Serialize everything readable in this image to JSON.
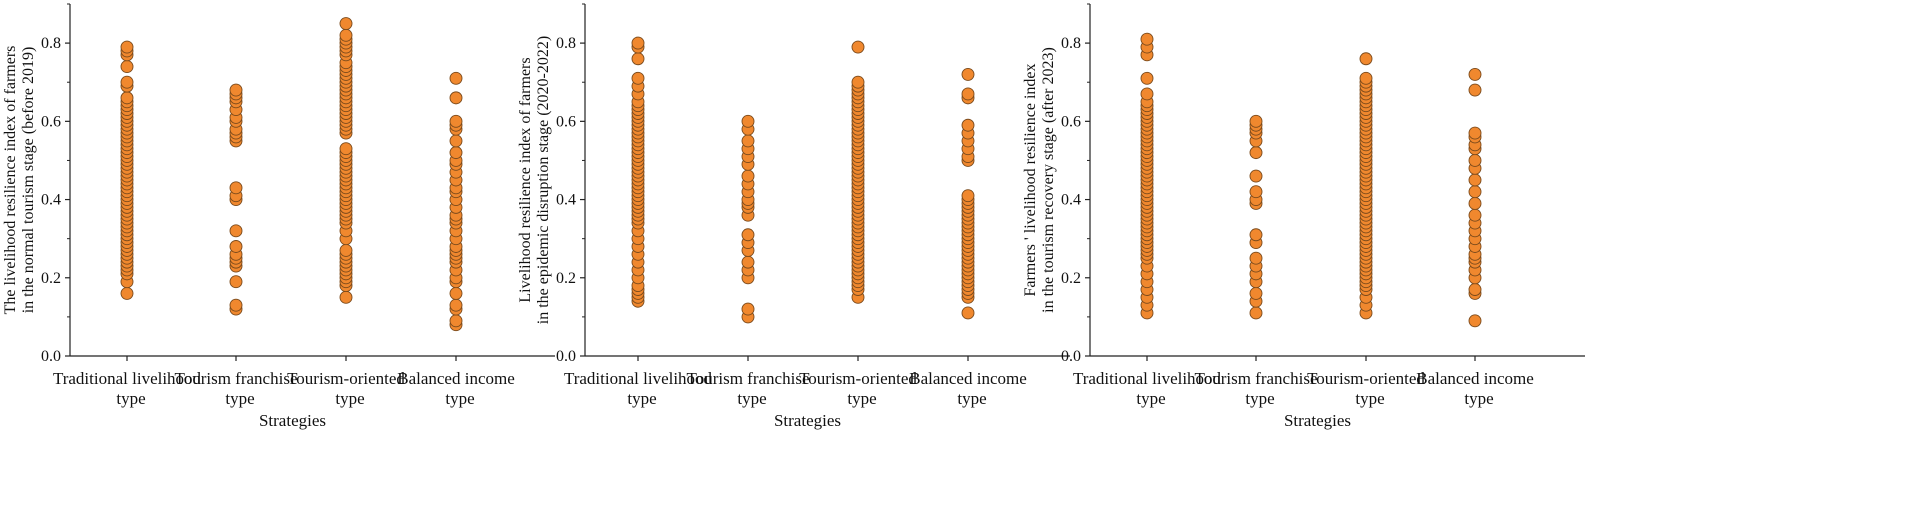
{
  "marker_fill": "#F0882E",
  "marker_stroke": "#7A4A1C",
  "chart_data": [
    {
      "type": "scatter",
      "xlabel": "Strategies",
      "ylabel": [
        "The livelihood resilience index of farmers",
        "in the normal tourism stage (before 2019)"
      ],
      "ylim": [
        0,
        0.9
      ],
      "yticks": [
        "0.0",
        "0.2",
        "0.4",
        "0.6",
        "0.8"
      ],
      "categories": [
        [
          "Traditional livelihood",
          "type"
        ],
        [
          "Tourism franchise",
          "type"
        ],
        [
          "Tourism-oriented",
          "type"
        ],
        [
          "Balanced income",
          "type"
        ]
      ],
      "grid": false,
      "series": [
        {
          "values": [
            0.16,
            0.19,
            0.21,
            0.22,
            0.23,
            0.24,
            0.25,
            0.26,
            0.27,
            0.28,
            0.29,
            0.3,
            0.31,
            0.32,
            0.33,
            0.34,
            0.35,
            0.36,
            0.37,
            0.38,
            0.39,
            0.4,
            0.41,
            0.42,
            0.43,
            0.44,
            0.45,
            0.46,
            0.47,
            0.48,
            0.49,
            0.5,
            0.51,
            0.52,
            0.53,
            0.54,
            0.55,
            0.56,
            0.57,
            0.58,
            0.59,
            0.6,
            0.61,
            0.62,
            0.63,
            0.64,
            0.65,
            0.66,
            0.69,
            0.7,
            0.74,
            0.77,
            0.78,
            0.79
          ]
        },
        {
          "values": [
            0.12,
            0.13,
            0.19,
            0.23,
            0.24,
            0.25,
            0.26,
            0.28,
            0.32,
            0.4,
            0.41,
            0.43,
            0.55,
            0.56,
            0.57,
            0.58,
            0.6,
            0.61,
            0.63,
            0.65,
            0.66,
            0.67,
            0.68
          ]
        },
        {
          "values": [
            0.15,
            0.18,
            0.19,
            0.2,
            0.21,
            0.22,
            0.23,
            0.24,
            0.25,
            0.26,
            0.27,
            0.3,
            0.32,
            0.34,
            0.35,
            0.36,
            0.37,
            0.38,
            0.39,
            0.4,
            0.41,
            0.42,
            0.43,
            0.44,
            0.45,
            0.46,
            0.47,
            0.48,
            0.49,
            0.5,
            0.51,
            0.52,
            0.53,
            0.57,
            0.58,
            0.59,
            0.6,
            0.61,
            0.62,
            0.63,
            0.64,
            0.65,
            0.66,
            0.67,
            0.68,
            0.69,
            0.7,
            0.71,
            0.72,
            0.73,
            0.74,
            0.75,
            0.77,
            0.78,
            0.79,
            0.8,
            0.81,
            0.82,
            0.85
          ]
        },
        {
          "values": [
            0.08,
            0.09,
            0.12,
            0.13,
            0.16,
            0.19,
            0.2,
            0.22,
            0.24,
            0.25,
            0.26,
            0.27,
            0.28,
            0.3,
            0.32,
            0.34,
            0.35,
            0.36,
            0.38,
            0.4,
            0.42,
            0.43,
            0.45,
            0.47,
            0.49,
            0.5,
            0.52,
            0.55,
            0.58,
            0.59,
            0.6,
            0.66,
            0.71
          ]
        }
      ]
    },
    {
      "type": "scatter",
      "xlabel": "Strategies",
      "ylabel": [
        "Livelihood resilience index of farmers",
        "in the epidemic disruption stage (2020-2022)"
      ],
      "ylim": [
        0,
        0.9
      ],
      "yticks": [
        "0.0",
        "0.2",
        "0.4",
        "0.6",
        "0.8"
      ],
      "categories": [
        [
          "Traditional livelihood",
          "type"
        ],
        [
          "Tourism franchise",
          "type"
        ],
        [
          "Tourism-oriented",
          "type"
        ],
        [
          "Balanced income",
          "type"
        ]
      ],
      "grid": false,
      "series": [
        {
          "values": [
            0.14,
            0.15,
            0.16,
            0.17,
            0.18,
            0.2,
            0.22,
            0.24,
            0.26,
            0.28,
            0.3,
            0.32,
            0.34,
            0.35,
            0.36,
            0.37,
            0.38,
            0.39,
            0.4,
            0.41,
            0.42,
            0.43,
            0.44,
            0.45,
            0.46,
            0.47,
            0.48,
            0.49,
            0.5,
            0.51,
            0.52,
            0.53,
            0.54,
            0.55,
            0.56,
            0.57,
            0.58,
            0.59,
            0.6,
            0.61,
            0.62,
            0.63,
            0.64,
            0.65,
            0.67,
            0.69,
            0.71,
            0.76,
            0.79,
            0.8
          ]
        },
        {
          "values": [
            0.1,
            0.12,
            0.2,
            0.22,
            0.24,
            0.27,
            0.29,
            0.31,
            0.36,
            0.38,
            0.39,
            0.4,
            0.42,
            0.44,
            0.46,
            0.49,
            0.51,
            0.53,
            0.55,
            0.58,
            0.6
          ]
        },
        {
          "values": [
            0.15,
            0.17,
            0.18,
            0.19,
            0.2,
            0.21,
            0.22,
            0.23,
            0.24,
            0.25,
            0.26,
            0.27,
            0.28,
            0.29,
            0.3,
            0.31,
            0.32,
            0.33,
            0.34,
            0.35,
            0.36,
            0.37,
            0.38,
            0.39,
            0.4,
            0.41,
            0.42,
            0.43,
            0.44,
            0.45,
            0.46,
            0.47,
            0.48,
            0.49,
            0.5,
            0.51,
            0.52,
            0.53,
            0.54,
            0.55,
            0.56,
            0.57,
            0.58,
            0.59,
            0.6,
            0.61,
            0.62,
            0.63,
            0.64,
            0.65,
            0.66,
            0.67,
            0.68,
            0.69,
            0.7,
            0.79
          ]
        },
        {
          "values": [
            0.11,
            0.15,
            0.16,
            0.17,
            0.18,
            0.19,
            0.2,
            0.21,
            0.22,
            0.23,
            0.24,
            0.25,
            0.26,
            0.27,
            0.28,
            0.29,
            0.3,
            0.31,
            0.32,
            0.33,
            0.34,
            0.35,
            0.36,
            0.37,
            0.38,
            0.39,
            0.4,
            0.41,
            0.5,
            0.51,
            0.53,
            0.55,
            0.57,
            0.59,
            0.66,
            0.67,
            0.72
          ]
        }
      ]
    },
    {
      "type": "scatter",
      "xlabel": "Strategies",
      "ylabel": [
        "Farmers ' livelihood resilience index",
        "in the tourism recovery stage (after 2023)"
      ],
      "ylim": [
        0,
        0.9
      ],
      "yticks": [
        "0.0",
        "0.2",
        "0.4",
        "0.6",
        "0.8"
      ],
      "categories": [
        [
          "Traditional livelihood",
          "type"
        ],
        [
          "Tourism franchise",
          "type"
        ],
        [
          "Tourism-oriented",
          "type"
        ],
        [
          "Balanced income",
          "type"
        ]
      ],
      "grid": false,
      "series": [
        {
          "values": [
            0.11,
            0.13,
            0.15,
            0.17,
            0.19,
            0.21,
            0.23,
            0.25,
            0.26,
            0.27,
            0.28,
            0.29,
            0.3,
            0.31,
            0.32,
            0.33,
            0.34,
            0.35,
            0.36,
            0.37,
            0.38,
            0.39,
            0.4,
            0.41,
            0.42,
            0.43,
            0.44,
            0.45,
            0.46,
            0.47,
            0.48,
            0.49,
            0.5,
            0.51,
            0.52,
            0.53,
            0.54,
            0.55,
            0.56,
            0.57,
            0.58,
            0.59,
            0.6,
            0.61,
            0.62,
            0.63,
            0.64,
            0.65,
            0.67,
            0.71,
            0.77,
            0.79,
            0.81
          ]
        },
        {
          "values": [
            0.11,
            0.14,
            0.16,
            0.19,
            0.21,
            0.23,
            0.25,
            0.29,
            0.31,
            0.39,
            0.4,
            0.42,
            0.46,
            0.52,
            0.55,
            0.57,
            0.58,
            0.59,
            0.6
          ]
        },
        {
          "values": [
            0.11,
            0.13,
            0.15,
            0.17,
            0.18,
            0.19,
            0.2,
            0.21,
            0.22,
            0.23,
            0.24,
            0.25,
            0.26,
            0.27,
            0.28,
            0.29,
            0.3,
            0.31,
            0.32,
            0.33,
            0.34,
            0.35,
            0.36,
            0.37,
            0.38,
            0.39,
            0.4,
            0.41,
            0.42,
            0.43,
            0.44,
            0.45,
            0.46,
            0.47,
            0.48,
            0.49,
            0.5,
            0.51,
            0.52,
            0.53,
            0.54,
            0.55,
            0.56,
            0.57,
            0.58,
            0.59,
            0.6,
            0.61,
            0.62,
            0.63,
            0.64,
            0.65,
            0.66,
            0.67,
            0.68,
            0.69,
            0.7,
            0.71,
            0.76
          ]
        },
        {
          "values": [
            0.09,
            0.16,
            0.17,
            0.2,
            0.22,
            0.24,
            0.25,
            0.26,
            0.28,
            0.3,
            0.32,
            0.34,
            0.36,
            0.39,
            0.42,
            0.45,
            0.48,
            0.5,
            0.53,
            0.54,
            0.56,
            0.57,
            0.68,
            0.72
          ]
        }
      ]
    }
  ]
}
